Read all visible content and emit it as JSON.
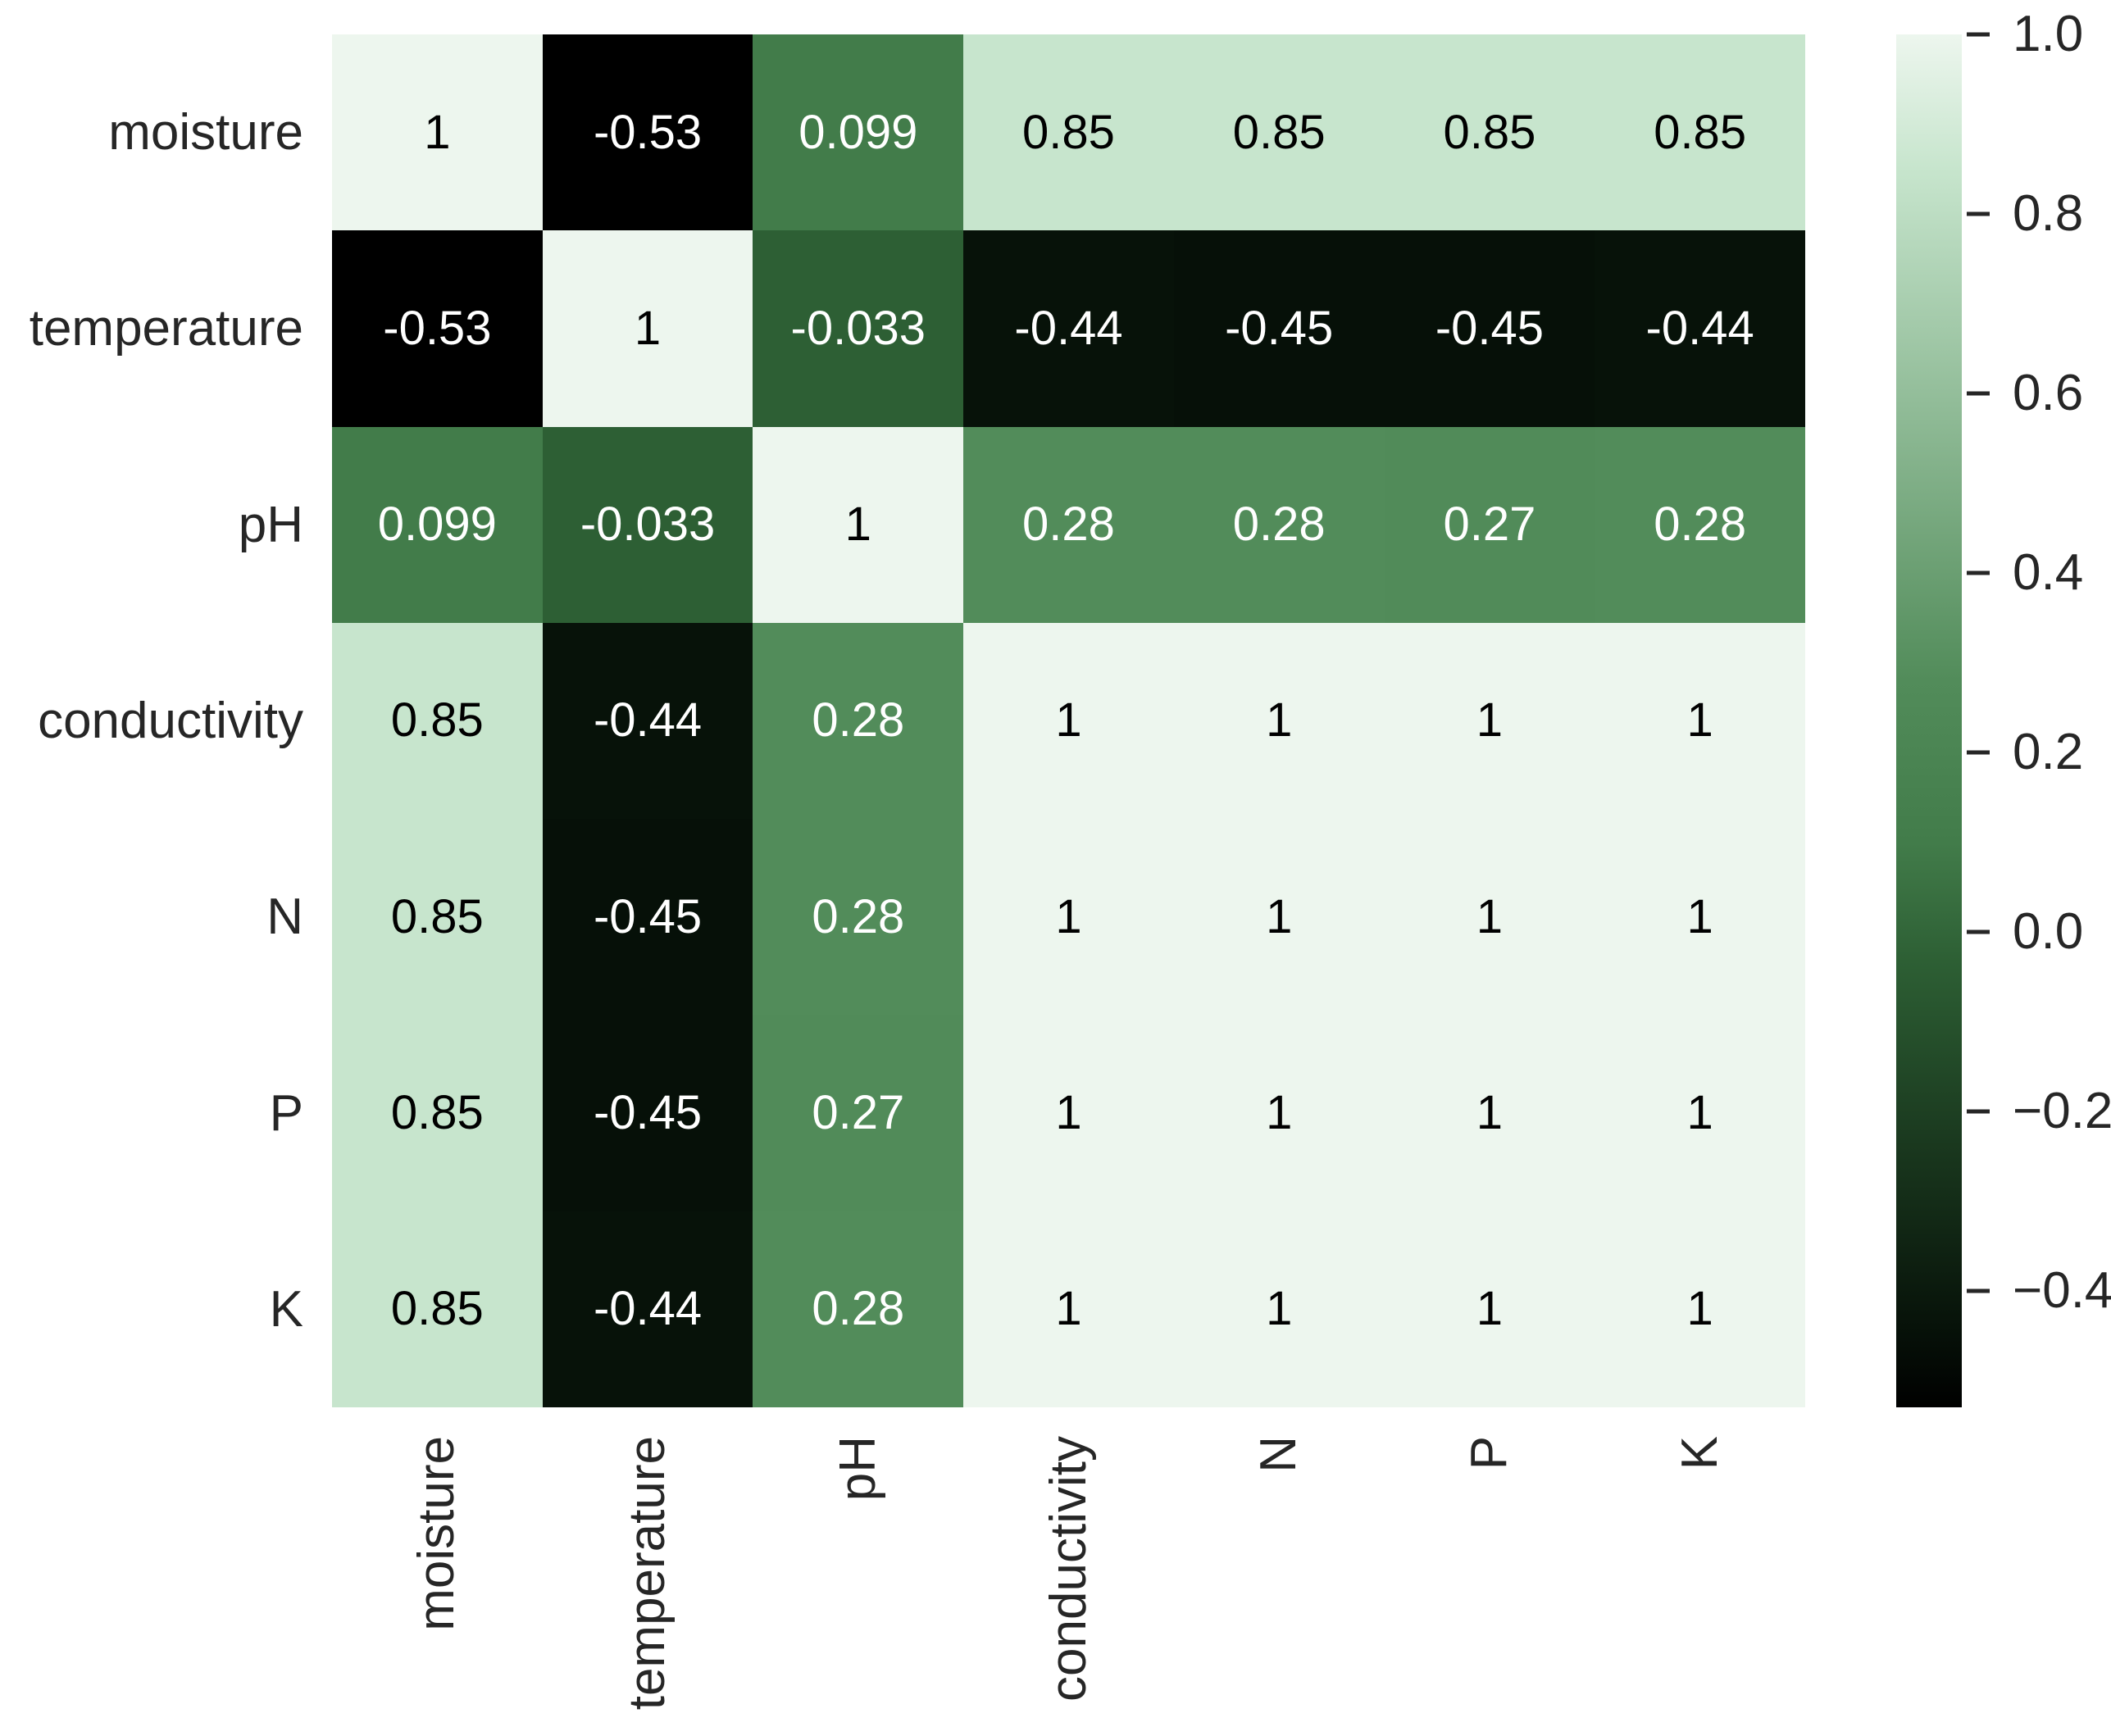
{
  "chart_data": {
    "type": "heatmap",
    "title": "",
    "xlabel": "",
    "ylabel": "",
    "categories": [
      "moisture",
      "temperature",
      "pH",
      "conductivity",
      "N",
      "P",
      "K"
    ],
    "matrix_display": [
      [
        "1",
        "-0.53",
        "0.099",
        "0.85",
        "0.85",
        "0.85",
        "0.85"
      ],
      [
        "-0.53",
        "1",
        "-0.033",
        "-0.44",
        "-0.45",
        "-0.45",
        "-0.44"
      ],
      [
        "0.099",
        "-0.033",
        "1",
        "0.28",
        "0.28",
        "0.27",
        "0.28"
      ],
      [
        "0.85",
        "-0.44",
        "0.28",
        "1",
        "1",
        "1",
        "1"
      ],
      [
        "0.85",
        "-0.45",
        "0.28",
        "1",
        "1",
        "1",
        "1"
      ],
      [
        "0.85",
        "-0.45",
        "0.27",
        "1",
        "1",
        "1",
        "1"
      ],
      [
        "0.85",
        "-0.44",
        "0.28",
        "1",
        "1",
        "1",
        "1"
      ]
    ],
    "vmin": -0.53,
    "vmax": 1.0,
    "colormap_name": "greens-dark-to-light",
    "colormap_stops": [
      {
        "value": -0.53,
        "color": "#000000"
      },
      {
        "value": -0.44,
        "color": "#071209"
      },
      {
        "value": -0.033,
        "color": "#2d5f34"
      },
      {
        "value": 0.099,
        "color": "#427c4a"
      },
      {
        "value": 0.28,
        "color": "#528c5a"
      },
      {
        "value": 0.85,
        "color": "#c7e5cd"
      },
      {
        "value": 1.0,
        "color": "#edf6ee"
      }
    ],
    "annotation_text_color_on_light": "#000000",
    "annotation_text_color_on_dark": "#ffffff",
    "light_text_threshold": 0.5,
    "axis_tick_color": "#262626",
    "legend_position": "right-colorbar",
    "grid": false,
    "colorbar_ticks": [
      "1.0",
      "0.8",
      "0.6",
      "0.4",
      "0.2",
      "0.0",
      "−0.2",
      "−0.4"
    ]
  }
}
